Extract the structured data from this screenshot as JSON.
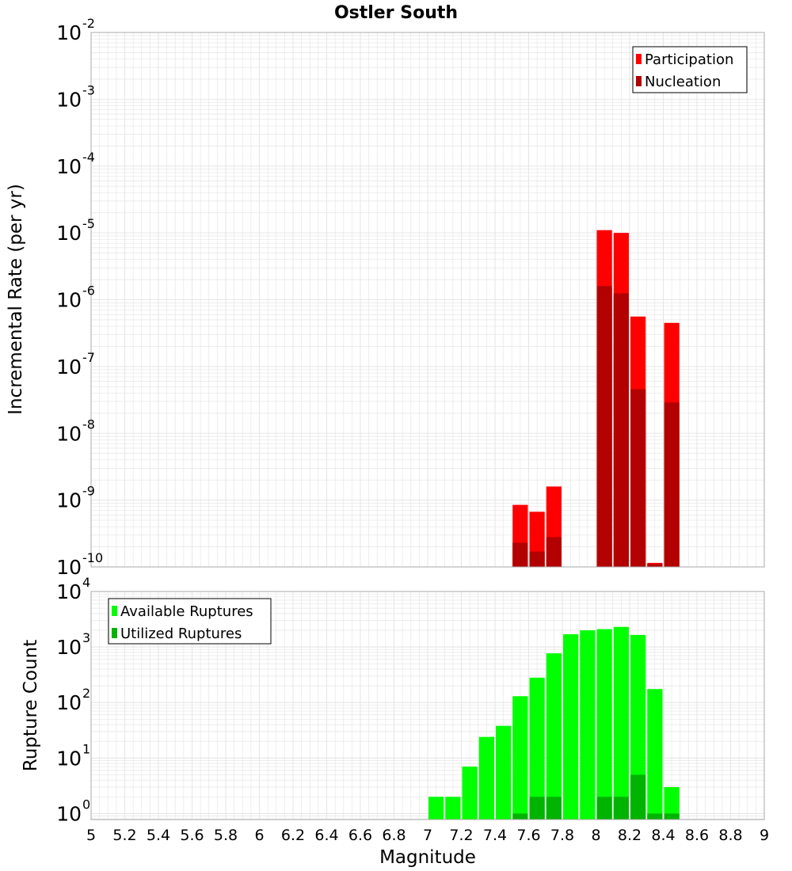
{
  "title": "Ostler South",
  "xlabel": "Magnitude",
  "colors": {
    "participation": "#ff0000",
    "nucleation": "#b30000",
    "available": "#00ff00",
    "utilized": "#00b300",
    "grid": "#e6e6e6",
    "frame": "#aaaaaa"
  },
  "chart_data": [
    {
      "type": "bar",
      "scale": "log",
      "ylabel": "Incremental Rate (per yr)",
      "ylim": [
        1e-10,
        0.01
      ],
      "legend_position": "top-right",
      "bin_width": 0.1,
      "series": [
        {
          "name": "Participation",
          "x": [
            7.55,
            7.65,
            7.75,
            8.05,
            8.15,
            8.25,
            8.35,
            8.45
          ],
          "values": [
            8.5e-10,
            6.7e-10,
            1.6e-09,
            1.1e-05,
            1e-05,
            5.6e-07,
            1.15e-10,
            4.5e-07
          ]
        },
        {
          "name": "Nucleation",
          "x": [
            7.55,
            7.65,
            7.75,
            8.05,
            8.15,
            8.25,
            8.35,
            8.45
          ],
          "values": [
            2.3e-10,
            1.7e-10,
            2.8e-10,
            1.6e-06,
            1.25e-06,
            4.6e-08,
            1.1e-10,
            2.9e-08
          ]
        }
      ]
    },
    {
      "type": "bar",
      "scale": "log",
      "ylabel": "Rupture Count",
      "ylim": [
        0.78,
        10000
      ],
      "legend_position": "top-left",
      "bin_width": 0.1,
      "series": [
        {
          "name": "Available Ruptures",
          "x": [
            7.05,
            7.15,
            7.25,
            7.35,
            7.45,
            7.55,
            7.65,
            7.75,
            7.85,
            7.95,
            8.05,
            8.15,
            8.25,
            8.35,
            8.45
          ],
          "values": [
            2,
            2,
            7,
            24,
            38,
            130,
            280,
            770,
            1700,
            2000,
            2100,
            2300,
            1650,
            175,
            3
          ]
        },
        {
          "name": "Utilized Ruptures",
          "x": [
            7.55,
            7.65,
            7.75,
            8.05,
            8.15,
            8.25,
            8.35,
            8.45
          ],
          "values": [
            1,
            2,
            2,
            2,
            2,
            5,
            1,
            1
          ]
        }
      ]
    }
  ],
  "x_axis": {
    "range": [
      5,
      9
    ],
    "ticks": [
      5,
      5.2,
      5.4,
      5.6,
      5.8,
      6,
      6.2,
      6.4,
      6.6,
      6.8,
      7,
      7.2,
      7.4,
      7.6,
      7.8,
      8,
      8.2,
      8.4,
      8.6,
      8.8,
      9
    ],
    "tick_labels": [
      "5",
      "5.2",
      "5.4",
      "5.6",
      "5.8",
      "6",
      "6.2",
      "6.4",
      "6.6",
      "6.8",
      "7",
      "7.2",
      "7.4",
      "7.6",
      "7.8",
      "8",
      "8.2",
      "8.4",
      "8.6",
      "8.8",
      "9"
    ]
  },
  "top_y_ticks": [
    {
      "value": 1e-10,
      "base": "10",
      "exp": "-10"
    },
    {
      "value": 1e-09,
      "base": "10",
      "exp": "-9"
    },
    {
      "value": 1e-08,
      "base": "10",
      "exp": "-8"
    },
    {
      "value": 1e-07,
      "base": "10",
      "exp": "-7"
    },
    {
      "value": 1e-06,
      "base": "10",
      "exp": "-6"
    },
    {
      "value": 1e-05,
      "base": "10",
      "exp": "-5"
    },
    {
      "value": 0.0001,
      "base": "10",
      "exp": "-4"
    },
    {
      "value": 0.001,
      "base": "10",
      "exp": "-3"
    },
    {
      "value": 0.01,
      "base": "10",
      "exp": "-2"
    }
  ],
  "bottom_y_ticks": [
    {
      "value": 1,
      "base": "10",
      "exp": "0"
    },
    {
      "value": 10,
      "base": "10",
      "exp": "1"
    },
    {
      "value": 100,
      "base": "10",
      "exp": "2"
    },
    {
      "value": 1000,
      "base": "10",
      "exp": "3"
    },
    {
      "value": 10000,
      "base": "10",
      "exp": "4"
    }
  ]
}
